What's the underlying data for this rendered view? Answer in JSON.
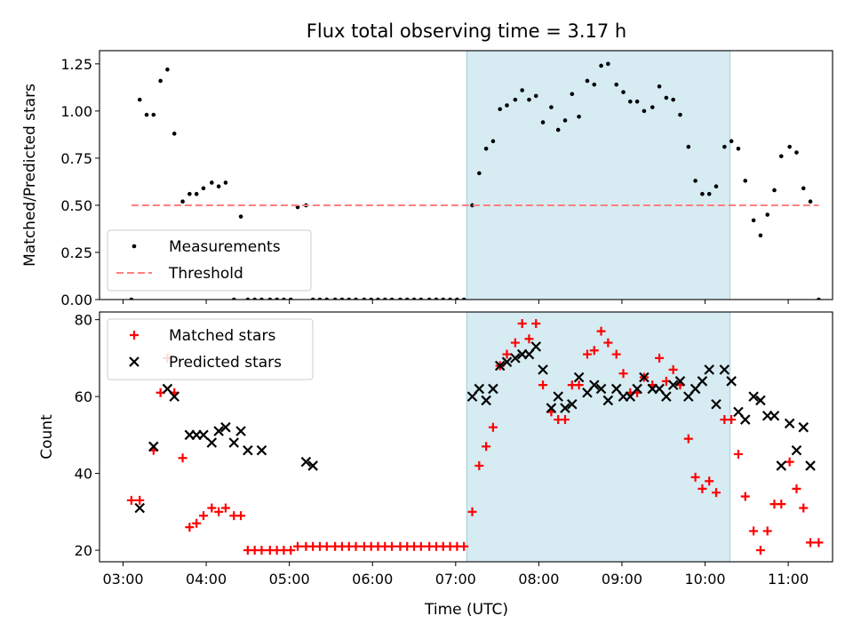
{
  "chart_data": [
    {
      "type": "scatter",
      "title": "Flux total observing time = 3.17 h",
      "xlabel": "",
      "ylabel": "Matched/Predicted stars",
      "xlim": [
        "02:43",
        "11:32"
      ],
      "ylim": [
        0,
        1.32
      ],
      "yticks": [
        "0.00",
        "0.25",
        "0.50",
        "0.75",
        "1.00",
        "1.25"
      ],
      "xticks": [
        "03:00",
        "04:00",
        "05:00",
        "06:00",
        "07:00",
        "08:00",
        "09:00",
        "10:00",
        "11:00"
      ],
      "shaded_span": [
        "07:08",
        "10:18"
      ],
      "legend_position": "lower-left",
      "series": [
        {
          "name": "Measurements",
          "marker": "dot",
          "color": "#000000",
          "points": [
            [
              "03:06",
              0.0
            ],
            [
              "03:12",
              1.06
            ],
            [
              "03:17",
              0.98
            ],
            [
              "03:22",
              0.98
            ],
            [
              "03:27",
              1.16
            ],
            [
              "03:32",
              1.22
            ],
            [
              "03:37",
              0.88
            ],
            [
              "03:43",
              0.52
            ],
            [
              "03:48",
              0.56
            ],
            [
              "03:53",
              0.56
            ],
            [
              "03:58",
              0.59
            ],
            [
              "04:04",
              0.62
            ],
            [
              "04:09",
              0.6
            ],
            [
              "04:14",
              0.62
            ],
            [
              "04:20",
              0.0
            ],
            [
              "04:25",
              0.44
            ],
            [
              "04:30",
              0.0
            ],
            [
              "04:35",
              0.0
            ],
            [
              "04:40",
              0.0
            ],
            [
              "04:46",
              0.0
            ],
            [
              "04:51",
              0.0
            ],
            [
              "04:56",
              0.0
            ],
            [
              "05:01",
              0.0
            ],
            [
              "05:06",
              0.49
            ],
            [
              "05:12",
              0.5
            ],
            [
              "05:17",
              0.0
            ],
            [
              "05:22",
              0.0
            ],
            [
              "05:27",
              0.0
            ],
            [
              "05:33",
              0.0
            ],
            [
              "05:38",
              0.0
            ],
            [
              "05:43",
              0.0
            ],
            [
              "05:48",
              0.0
            ],
            [
              "05:54",
              0.0
            ],
            [
              "05:59",
              0.0
            ],
            [
              "06:04",
              0.0
            ],
            [
              "06:09",
              0.0
            ],
            [
              "06:14",
              0.0
            ],
            [
              "06:20",
              0.0
            ],
            [
              "06:25",
              0.0
            ],
            [
              "06:30",
              0.0
            ],
            [
              "06:35",
              0.0
            ],
            [
              "06:41",
              0.0
            ],
            [
              "06:46",
              0.0
            ],
            [
              "06:51",
              0.0
            ],
            [
              "06:56",
              0.0
            ],
            [
              "07:01",
              0.0
            ],
            [
              "07:06",
              0.0
            ],
            [
              "07:12",
              0.5
            ],
            [
              "07:17",
              0.67
            ],
            [
              "07:22",
              0.8
            ],
            [
              "07:27",
              0.84
            ],
            [
              "07:32",
              1.01
            ],
            [
              "07:37",
              1.03
            ],
            [
              "07:43",
              1.06
            ],
            [
              "07:48",
              1.11
            ],
            [
              "07:53",
              1.06
            ],
            [
              "07:58",
              1.08
            ],
            [
              "08:03",
              0.94
            ],
            [
              "08:09",
              1.02
            ],
            [
              "08:14",
              0.9
            ],
            [
              "08:19",
              0.95
            ],
            [
              "08:24",
              1.09
            ],
            [
              "08:29",
              0.97
            ],
            [
              "08:35",
              1.16
            ],
            [
              "08:40",
              1.14
            ],
            [
              "08:45",
              1.24
            ],
            [
              "08:50",
              1.25
            ],
            [
              "08:56",
              1.14
            ],
            [
              "09:01",
              1.1
            ],
            [
              "09:06",
              1.05
            ],
            [
              "09:11",
              1.05
            ],
            [
              "09:16",
              1.0
            ],
            [
              "09:22",
              1.02
            ],
            [
              "09:27",
              1.13
            ],
            [
              "09:32",
              1.07
            ],
            [
              "09:37",
              1.06
            ],
            [
              "09:42",
              0.98
            ],
            [
              "09:48",
              0.81
            ],
            [
              "09:53",
              0.63
            ],
            [
              "09:58",
              0.56
            ],
            [
              "10:03",
              0.56
            ],
            [
              "10:08",
              0.6
            ],
            [
              "10:14",
              0.81
            ],
            [
              "10:19",
              0.84
            ],
            [
              "10:24",
              0.8
            ],
            [
              "10:29",
              0.63
            ],
            [
              "10:35",
              0.42
            ],
            [
              "10:40",
              0.34
            ],
            [
              "10:45",
              0.45
            ],
            [
              "10:50",
              0.58
            ],
            [
              "10:55",
              0.76
            ],
            [
              "11:01",
              0.81
            ],
            [
              "11:06",
              0.78
            ],
            [
              "11:11",
              0.59
            ],
            [
              "11:16",
              0.52
            ],
            [
              "11:22",
              0.0
            ]
          ]
        },
        {
          "name": "Threshold",
          "marker": "dashed-line",
          "color": "#ff7f7f",
          "points": [
            [
              "03:06",
              0.5
            ],
            [
              "11:22",
              0.5
            ]
          ]
        }
      ]
    },
    {
      "type": "scatter",
      "title": "",
      "xlabel": "Time (UTC)",
      "ylabel": "Count",
      "xlim": [
        "02:43",
        "11:32"
      ],
      "ylim": [
        17,
        82
      ],
      "yticks": [
        "20",
        "40",
        "60",
        "80"
      ],
      "xticks": [
        "03:00",
        "04:00",
        "05:00",
        "06:00",
        "07:00",
        "08:00",
        "09:00",
        "10:00",
        "11:00"
      ],
      "shaded_span": [
        "07:08",
        "10:18"
      ],
      "legend_position": "upper-left",
      "series": [
        {
          "name": "Matched stars",
          "marker": "plus",
          "color": "#ff0000",
          "points": [
            [
              "03:06",
              33
            ],
            [
              "03:12",
              33
            ],
            [
              "03:22",
              46
            ],
            [
              "03:27",
              61
            ],
            [
              "03:32",
              70
            ],
            [
              "03:37",
              61
            ],
            [
              "03:43",
              44
            ],
            [
              "03:48",
              26
            ],
            [
              "03:53",
              27
            ],
            [
              "03:58",
              29
            ],
            [
              "04:04",
              31
            ],
            [
              "04:09",
              30
            ],
            [
              "04:14",
              31
            ],
            [
              "04:20",
              29
            ],
            [
              "04:25",
              29
            ],
            [
              "04:30",
              20
            ],
            [
              "04:35",
              20
            ],
            [
              "04:40",
              20
            ],
            [
              "04:46",
              20
            ],
            [
              "04:51",
              20
            ],
            [
              "04:56",
              20
            ],
            [
              "05:01",
              20
            ],
            [
              "05:06",
              21
            ],
            [
              "05:12",
              21
            ],
            [
              "05:17",
              21
            ],
            [
              "05:22",
              21
            ],
            [
              "05:27",
              21
            ],
            [
              "05:33",
              21
            ],
            [
              "05:38",
              21
            ],
            [
              "05:43",
              21
            ],
            [
              "05:48",
              21
            ],
            [
              "05:54",
              21
            ],
            [
              "05:59",
              21
            ],
            [
              "06:04",
              21
            ],
            [
              "06:09",
              21
            ],
            [
              "06:14",
              21
            ],
            [
              "06:20",
              21
            ],
            [
              "06:25",
              21
            ],
            [
              "06:30",
              21
            ],
            [
              "06:35",
              21
            ],
            [
              "06:41",
              21
            ],
            [
              "06:46",
              21
            ],
            [
              "06:51",
              21
            ],
            [
              "06:56",
              21
            ],
            [
              "07:01",
              21
            ],
            [
              "07:06",
              21
            ],
            [
              "07:12",
              30
            ],
            [
              "07:17",
              42
            ],
            [
              "07:22",
              47
            ],
            [
              "07:27",
              52
            ],
            [
              "07:32",
              68
            ],
            [
              "07:37",
              71
            ],
            [
              "07:43",
              74
            ],
            [
              "07:48",
              79
            ],
            [
              "07:53",
              75
            ],
            [
              "07:58",
              79
            ],
            [
              "08:03",
              63
            ],
            [
              "08:09",
              56
            ],
            [
              "08:14",
              54
            ],
            [
              "08:19",
              54
            ],
            [
              "08:24",
              63
            ],
            [
              "08:29",
              63
            ],
            [
              "08:35",
              71
            ],
            [
              "08:40",
              72
            ],
            [
              "08:45",
              77
            ],
            [
              "08:50",
              74
            ],
            [
              "08:56",
              71
            ],
            [
              "09:01",
              66
            ],
            [
              "09:06",
              61
            ],
            [
              "09:11",
              61
            ],
            [
              "09:16",
              65
            ],
            [
              "09:22",
              63
            ],
            [
              "09:27",
              70
            ],
            [
              "09:32",
              64
            ],
            [
              "09:37",
              67
            ],
            [
              "09:42",
              63
            ],
            [
              "09:48",
              49
            ],
            [
              "09:53",
              39
            ],
            [
              "09:58",
              36
            ],
            [
              "10:03",
              38
            ],
            [
              "10:08",
              35
            ],
            [
              "10:14",
              54
            ],
            [
              "10:19",
              54
            ],
            [
              "10:24",
              45
            ],
            [
              "10:29",
              34
            ],
            [
              "10:35",
              25
            ],
            [
              "10:40",
              20
            ],
            [
              "10:45",
              25
            ],
            [
              "10:50",
              32
            ],
            [
              "10:55",
              32
            ],
            [
              "11:01",
              43
            ],
            [
              "11:06",
              36
            ],
            [
              "11:11",
              31
            ],
            [
              "11:16",
              22
            ],
            [
              "11:22",
              22
            ]
          ]
        },
        {
          "name": "Predicted stars",
          "marker": "x",
          "color": "#000000",
          "points": [
            [
              "03:12",
              31
            ],
            [
              "03:22",
              47
            ],
            [
              "03:32",
              62
            ],
            [
              "03:37",
              60
            ],
            [
              "03:48",
              50
            ],
            [
              "03:53",
              50
            ],
            [
              "03:58",
              50
            ],
            [
              "04:04",
              48
            ],
            [
              "04:09",
              51
            ],
            [
              "04:14",
              52
            ],
            [
              "04:20",
              48
            ],
            [
              "04:25",
              51
            ],
            [
              "04:30",
              46
            ],
            [
              "04:40",
              46
            ],
            [
              "05:12",
              43
            ],
            [
              "05:17",
              42
            ],
            [
              "07:12",
              60
            ],
            [
              "07:17",
              62
            ],
            [
              "07:22",
              59
            ],
            [
              "07:27",
              62
            ],
            [
              "07:32",
              68
            ],
            [
              "07:37",
              69
            ],
            [
              "07:43",
              70
            ],
            [
              "07:48",
              71
            ],
            [
              "07:53",
              71
            ],
            [
              "07:58",
              73
            ],
            [
              "08:03",
              67
            ],
            [
              "08:09",
              57
            ],
            [
              "08:14",
              60
            ],
            [
              "08:19",
              57
            ],
            [
              "08:24",
              58
            ],
            [
              "08:29",
              65
            ],
            [
              "08:35",
              61
            ],
            [
              "08:40",
              63
            ],
            [
              "08:45",
              62
            ],
            [
              "08:50",
              59
            ],
            [
              "08:56",
              62
            ],
            [
              "09:01",
              60
            ],
            [
              "09:06",
              60
            ],
            [
              "09:11",
              62
            ],
            [
              "09:16",
              65
            ],
            [
              "09:22",
              62
            ],
            [
              "09:27",
              62
            ],
            [
              "09:32",
              60
            ],
            [
              "09:37",
              63
            ],
            [
              "09:42",
              64
            ],
            [
              "09:48",
              60
            ],
            [
              "09:53",
              62
            ],
            [
              "09:58",
              64
            ],
            [
              "10:03",
              67
            ],
            [
              "10:08",
              58
            ],
            [
              "10:14",
              67
            ],
            [
              "10:19",
              64
            ],
            [
              "10:24",
              56
            ],
            [
              "10:29",
              54
            ],
            [
              "10:35",
              60
            ],
            [
              "10:40",
              59
            ],
            [
              "10:45",
              55
            ],
            [
              "10:50",
              55
            ],
            [
              "10:55",
              42
            ],
            [
              "11:01",
              53
            ],
            [
              "11:06",
              46
            ],
            [
              "11:11",
              52
            ],
            [
              "11:16",
              42
            ]
          ]
        }
      ]
    }
  ]
}
